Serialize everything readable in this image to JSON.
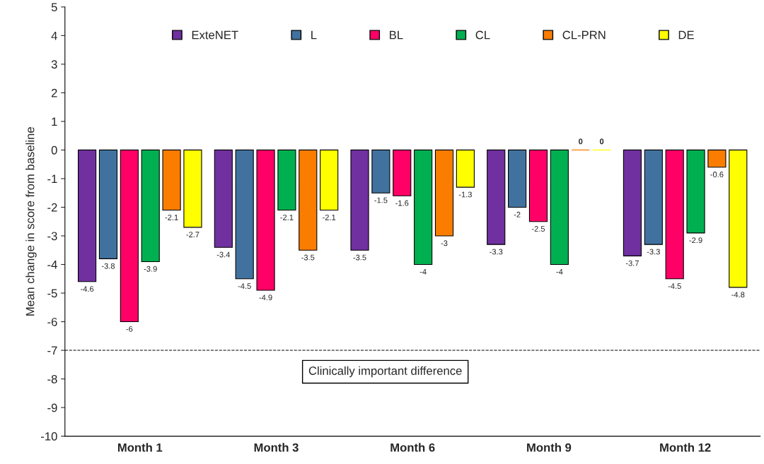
{
  "chart_data": {
    "type": "bar",
    "ylabel": "Mean change in score from baseline",
    "categories": [
      "Month 1",
      "Month 3",
      "Month 6",
      "Month 9",
      "Month 12"
    ],
    "series": [
      {
        "name": "ExteNET",
        "color": "#7030a0",
        "values": [
          -4.6,
          -3.4,
          -3.5,
          -3.3,
          -3.7
        ]
      },
      {
        "name": "L",
        "color": "#41729f",
        "values": [
          -3.8,
          -4.5,
          -1.5,
          -2,
          -3.3
        ]
      },
      {
        "name": "BL",
        "color": "#ff0066",
        "values": [
          -6,
          -4.9,
          -1.6,
          -2.5,
          -4.5
        ]
      },
      {
        "name": "CL",
        "color": "#00b050",
        "values": [
          -3.9,
          -2.1,
          -4,
          -4,
          -2.9
        ]
      },
      {
        "name": "CL-PRN",
        "color": "#fa7d00",
        "values": [
          -2.1,
          -3.5,
          -3,
          0,
          -0.6
        ]
      },
      {
        "name": "DE",
        "color": "#ffff00",
        "values": [
          -2.7,
          -2.1,
          -1.3,
          0,
          -4.8
        ]
      }
    ],
    "ylim": [
      -10,
      5
    ],
    "yticks": [
      -10,
      -9,
      -8,
      -7,
      -6,
      -5,
      -4,
      -3,
      -2,
      -1,
      0,
      1,
      2,
      3,
      4,
      5
    ],
    "ref_lines": [
      {
        "axis": "y",
        "value": -7,
        "label": "Clinically important difference",
        "line_style": "dashed"
      }
    ],
    "data_labels": true,
    "legend": "top",
    "grid": false
  }
}
